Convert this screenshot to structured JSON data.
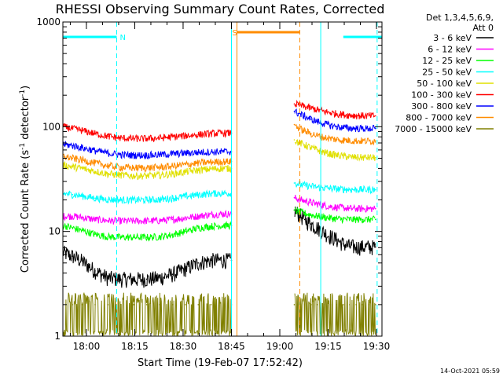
{
  "chart_data": {
    "type": "line",
    "title": "RHESSI Observing Summary Count Rates, Corrected",
    "xlabel": "Start Time (19-Feb-07 17:52:42)",
    "ylabel_main": "Corrected Count Rate (s",
    "ylabel_sup1": "-1",
    "ylabel_mid": " detector",
    "ylabel_sup2": "-1",
    "ylabel_end": ")",
    "x_unit": "minutes after 17:52:42",
    "xlim": [
      0,
      99
    ],
    "ylim": [
      1,
      1000
    ],
    "yscale": "log",
    "x_ticks": [
      {
        "value": 7.3,
        "label": "18:00"
      },
      {
        "value": 22.3,
        "label": "18:15"
      },
      {
        "value": 37.3,
        "label": "18:30"
      },
      {
        "value": 52.3,
        "label": "18:45"
      },
      {
        "value": 67.3,
        "label": "19:00"
      },
      {
        "value": 82.3,
        "label": "19:15"
      },
      {
        "value": 97.3,
        "label": "19:30"
      }
    ],
    "y_ticks": [
      {
        "value": 1,
        "label": "1"
      },
      {
        "value": 10,
        "label": "10"
      },
      {
        "value": 100,
        "label": "100"
      },
      {
        "value": 1000,
        "label": "1000"
      }
    ],
    "legend_header": [
      "Det 1,3,4,5,6,9,",
      "Att 0"
    ],
    "legend_placement": "right",
    "footer": "14-Oct-2021 05:59",
    "gap": [
      52.3,
      71.8
    ],
    "series": [
      {
        "name": "3 - 6 keV",
        "color": "#000000",
        "x": [
          0,
          3,
          6,
          10,
          14,
          18,
          22,
          26,
          30,
          34,
          38,
          42,
          46,
          50,
          52.3,
          71.8,
          73,
          75,
          77,
          79,
          81,
          83,
          85,
          87,
          89,
          91,
          93,
          95,
          97
        ],
        "values": [
          6.3,
          5.8,
          5.2,
          4.2,
          3.6,
          3.5,
          3.5,
          3.5,
          3.6,
          3.9,
          4.4,
          5,
          5.3,
          5.3,
          5.3,
          16,
          14.8,
          13,
          11.8,
          10.8,
          9.8,
          9,
          8.3,
          7.6,
          7.2,
          7.1,
          7.1,
          7.1,
          7.1
        ]
      },
      {
        "name": "6 - 12 keV",
        "color": "#ff00ff",
        "x": [
          0,
          3,
          6,
          10,
          14,
          18,
          22,
          26,
          30,
          34,
          38,
          42,
          46,
          50,
          52.3,
          71.8,
          73,
          75,
          77,
          79,
          81,
          83,
          85,
          87,
          89,
          91,
          93,
          95,
          97
        ],
        "values": [
          14,
          14,
          13.6,
          13,
          12.7,
          12.6,
          12.6,
          12.6,
          12.7,
          13,
          13.5,
          14,
          14.5,
          14.7,
          14.7,
          21,
          20.4,
          19.6,
          18.9,
          18.3,
          17.8,
          17.3,
          17,
          16.8,
          16.6,
          16.5,
          16.5,
          16.5,
          16.5
        ]
      },
      {
        "name": "12 - 25 keV",
        "color": "#00ff00",
        "x": [
          0,
          3,
          6,
          10,
          14,
          18,
          22,
          26,
          30,
          34,
          38,
          42,
          46,
          50,
          52.3,
          71.8,
          73,
          75,
          77,
          79,
          81,
          83,
          85,
          87,
          89,
          91,
          93,
          95,
          97
        ],
        "values": [
          11.5,
          10.8,
          10.2,
          9.4,
          8.9,
          8.8,
          8.8,
          8.8,
          8.9,
          9.3,
          10,
          10.8,
          11.2,
          11.4,
          11.4,
          16,
          15.5,
          14.9,
          14.4,
          14,
          13.7,
          13.4,
          13.2,
          13.1,
          13,
          13,
          13,
          13,
          13
        ]
      },
      {
        "name": "25 - 50 keV",
        "color": "#00ffff",
        "x": [
          0,
          3,
          6,
          10,
          14,
          18,
          22,
          26,
          30,
          34,
          38,
          42,
          46,
          50,
          52.3,
          71.8,
          73,
          75,
          77,
          79,
          81,
          83,
          85,
          87,
          89,
          91,
          93,
          95,
          97
        ],
        "values": [
          23,
          22.5,
          21.8,
          20.8,
          20.2,
          20,
          20,
          20,
          20.2,
          20.8,
          21.6,
          22.4,
          23,
          23.2,
          23.2,
          29,
          28.3,
          27.6,
          27,
          26.5,
          26.1,
          25.8,
          25.5,
          25.3,
          25.2,
          25.1,
          25.1,
          25.1,
          25.1
        ]
      },
      {
        "name": "50 - 100 keV",
        "color": "#e0e000",
        "x": [
          0,
          3,
          6,
          10,
          14,
          18,
          22,
          26,
          30,
          34,
          38,
          42,
          46,
          50,
          52.3,
          71.8,
          73,
          75,
          77,
          79,
          81,
          83,
          85,
          87,
          89,
          91,
          93,
          95,
          97
        ],
        "values": [
          43,
          41.5,
          40,
          37.5,
          35.5,
          34.5,
          34,
          34,
          34.5,
          35.5,
          37,
          38.5,
          39.5,
          40,
          40,
          75,
          71,
          67,
          63,
          60,
          57,
          55,
          53.5,
          52.5,
          51.5,
          51,
          50.8,
          50.7,
          50.7
        ]
      },
      {
        "name": "100 - 300 keV",
        "color": "#ff0000",
        "x": [
          0,
          3,
          6,
          10,
          14,
          18,
          22,
          26,
          30,
          34,
          38,
          42,
          46,
          50,
          52.3,
          71.8,
          73,
          75,
          77,
          79,
          81,
          83,
          85,
          87,
          89,
          91,
          93,
          95,
          97
        ],
        "values": [
          100,
          96,
          92,
          86,
          81,
          78,
          77,
          77,
          78,
          80,
          82,
          84,
          86,
          87,
          87,
          165,
          162,
          156,
          150,
          145,
          140,
          136,
          133,
          131,
          129,
          128,
          127,
          127,
          127
        ]
      },
      {
        "name": "300 - 800 keV",
        "color": "#0000ff",
        "x": [
          0,
          3,
          6,
          10,
          14,
          18,
          22,
          26,
          30,
          34,
          38,
          42,
          46,
          50,
          52.3,
          71.8,
          73,
          75,
          77,
          79,
          81,
          83,
          85,
          87,
          89,
          91,
          93,
          95,
          97
        ],
        "values": [
          68,
          66,
          63,
          59,
          56,
          54,
          53.5,
          53.5,
          54,
          55,
          56,
          57,
          57.5,
          57.8,
          57.8,
          140,
          134,
          126,
          118,
          112,
          107,
          103,
          100,
          98,
          97,
          96.5,
          96.2,
          96,
          96
        ]
      },
      {
        "name": "800 - 7000 keV",
        "color": "#ff8c00",
        "x": [
          0,
          3,
          6,
          10,
          14,
          18,
          22,
          26,
          30,
          34,
          38,
          42,
          46,
          50,
          52.3,
          71.8,
          73,
          75,
          77,
          79,
          81,
          83,
          85,
          87,
          89,
          91,
          93,
          95,
          97
        ],
        "values": [
          52,
          50,
          48,
          45,
          42.5,
          41,
          40.5,
          40.5,
          41,
          42,
          43.5,
          45,
          46,
          46.5,
          46.5,
          105,
          98,
          91,
          86,
          82,
          79,
          77,
          75.5,
          74.5,
          73.8,
          73.4,
          73.2,
          73.1,
          73
        ]
      },
      {
        "name": "7000 - 15000 keV",
        "color": "#808000",
        "x": [
          0,
          3,
          6,
          10,
          14,
          18,
          22,
          26,
          30,
          34,
          38,
          42,
          46,
          50,
          52.3,
          71.8,
          73,
          75,
          77,
          79,
          81,
          83,
          85,
          87,
          89,
          91,
          93,
          95,
          97
        ],
        "values": [
          2,
          2,
          2,
          2,
          2,
          2,
          2,
          2,
          2,
          2,
          2,
          2,
          2,
          2,
          2,
          2,
          2,
          2,
          2,
          2,
          2,
          2,
          2,
          2,
          2,
          2,
          2,
          2,
          2
        ]
      }
    ],
    "attenuator_bars": [
      {
        "label": "N",
        "color": "#00ffff",
        "x_start": 0,
        "x_end": 16.7
      },
      {
        "label": "",
        "color": "#00ffff",
        "x_start": 87,
        "x_end": 99
      },
      {
        "label": "S",
        "color": "#ff8c00",
        "x_start": 54,
        "x_end": 73.5
      }
    ],
    "markers": [
      {
        "x": 0,
        "color": "#00ffff",
        "style": "solid"
      },
      {
        "x": 16.7,
        "color": "#00ffff",
        "style": "dashed"
      },
      {
        "x": 52.3,
        "color": "#00ffff",
        "style": "solid"
      },
      {
        "x": 54,
        "color": "#ff8c00",
        "style": "solid"
      },
      {
        "x": 73.5,
        "color": "#ff8c00",
        "style": "dashed"
      },
      {
        "x": 80,
        "color": "#00ffff",
        "style": "solid"
      },
      {
        "x": 97.5,
        "color": "#00ffff",
        "style": "dashed"
      }
    ]
  }
}
